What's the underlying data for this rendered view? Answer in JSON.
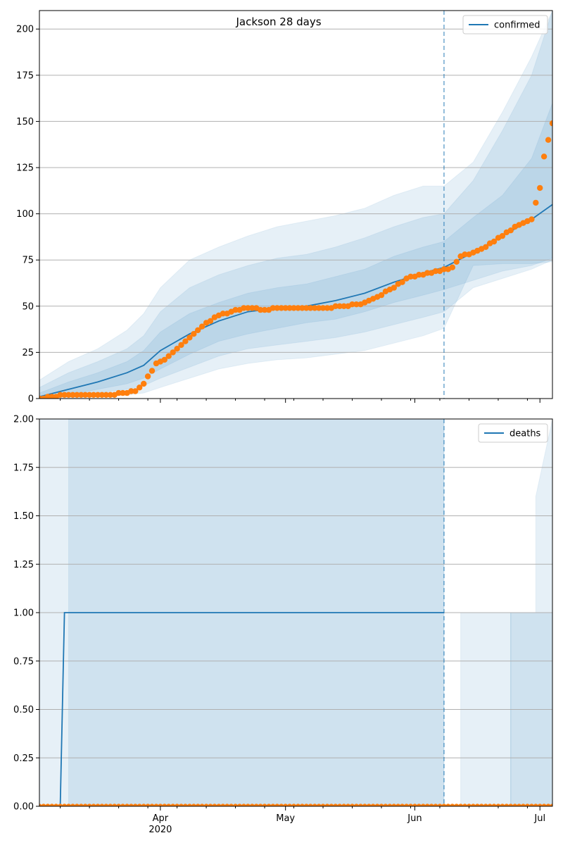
{
  "figure": {
    "title": "Jackson 28 days"
  },
  "colors": {
    "line": "#1f77b4",
    "points": "#ff7f0e",
    "band": "#1f77b4",
    "grid": "#b0b0b0"
  },
  "chart_data": [
    {
      "type": "line",
      "title": "Jackson 28 days",
      "legend": {
        "placement": "top-right",
        "entries": [
          "confirmed"
        ]
      },
      "grid": {
        "y": true,
        "x": false
      },
      "x_axis": {
        "type": "date",
        "range": [
          "2020-03-03",
          "2020-07-04"
        ],
        "ticks": []
      },
      "y_axis": {
        "range": [
          0,
          210
        ],
        "ticks": [
          "0",
          "25",
          "50",
          "75",
          "100",
          "125",
          "150",
          "175",
          "200"
        ]
      },
      "forecast_start": "2020-06-08",
      "x": [
        "2020-03-03",
        "2020-03-10",
        "2020-03-17",
        "2020-03-24",
        "2020-03-28",
        "2020-04-01",
        "2020-04-08",
        "2020-04-15",
        "2020-04-22",
        "2020-04-29",
        "2020-05-06",
        "2020-05-13",
        "2020-05-20",
        "2020-05-27",
        "2020-06-03",
        "2020-06-08",
        "2020-06-15",
        "2020-06-22",
        "2020-06-29",
        "2020-07-04"
      ],
      "series": [
        {
          "name": "confirmed",
          "role": "model",
          "values": [
            1,
            5,
            9,
            14,
            18,
            26,
            35,
            42,
            47,
            49,
            50,
            53,
            57,
            63,
            68,
            71,
            79,
            88,
            97,
            105
          ]
        },
        {
          "role": "band-50",
          "lower": [
            0,
            2,
            5,
            8,
            11,
            16,
            24,
            31,
            35,
            38,
            41,
            43,
            47,
            52,
            56,
            59,
            64,
            69,
            72,
            76
          ],
          "upper": [
            3,
            9,
            14,
            20,
            26,
            36,
            46,
            52,
            57,
            60,
            62,
            66,
            70,
            77,
            82,
            85,
            98,
            110,
            130,
            160
          ]
        },
        {
          "role": "band-80",
          "lower": [
            0,
            1,
            3,
            5,
            7,
            11,
            17,
            23,
            27,
            29,
            31,
            33,
            36,
            40,
            44,
            47,
            60,
            65,
            70,
            75
          ],
          "upper": [
            6,
            14,
            20,
            27,
            34,
            47,
            60,
            67,
            72,
            76,
            78,
            82,
            87,
            93,
            98,
            100,
            118,
            145,
            175,
            210
          ]
        },
        {
          "role": "band-95",
          "lower": [
            0,
            0,
            1,
            2,
            3,
            6,
            11,
            16,
            19,
            21,
            22,
            24,
            26,
            30,
            34,
            38,
            72,
            73,
            73,
            74
          ],
          "upper": [
            10,
            20,
            27,
            37,
            46,
            60,
            75,
            82,
            88,
            93,
            96,
            99,
            103,
            110,
            115,
            115,
            128,
            155,
            185,
            210
          ]
        },
        {
          "role": "observed",
          "x": [
            "2020-03-03",
            "2020-03-06",
            "2020-03-10",
            "2020-03-20",
            "2020-03-23",
            "2020-03-26",
            "2020-03-28",
            "2020-03-31",
            "2020-04-02",
            "2020-04-05",
            "2020-04-08",
            "2020-04-11",
            "2020-04-14",
            "2020-04-18",
            "2020-04-22",
            "2020-04-26",
            "2020-04-30",
            "2020-05-05",
            "2020-05-10",
            "2020-05-15",
            "2020-05-19",
            "2020-05-23",
            "2020-05-27",
            "2020-05-30",
            "2020-06-03",
            "2020-06-07",
            "2020-06-10",
            "2020-06-12",
            "2020-06-14",
            "2020-06-17",
            "2020-06-20",
            "2020-06-23",
            "2020-06-26",
            "2020-06-29",
            "2020-07-01",
            "2020-07-02",
            "2020-07-03",
            "2020-07-04"
          ],
          "values": [
            0,
            1,
            2,
            2,
            3,
            4,
            8,
            19,
            21,
            27,
            33,
            39,
            44,
            47,
            49,
            48,
            49,
            49,
            49,
            50,
            51,
            55,
            60,
            65,
            67,
            69,
            71,
            77,
            78,
            81,
            85,
            90,
            94,
            97,
            114,
            131,
            140,
            149
          ]
        }
      ]
    },
    {
      "type": "line",
      "legend": {
        "placement": "top-right",
        "entries": [
          "deaths"
        ]
      },
      "grid": {
        "y": true,
        "x": false
      },
      "x_axis": {
        "type": "date",
        "range": [
          "2020-03-03",
          "2020-07-04"
        ],
        "ticks": [
          {
            "date": "2020-04-01",
            "label": "Apr",
            "sublabel": "2020"
          },
          {
            "date": "2020-05-01",
            "label": "May"
          },
          {
            "date": "2020-06-01",
            "label": "Jun"
          },
          {
            "date": "2020-07-01",
            "label": "Jul"
          }
        ]
      },
      "y_axis": {
        "range": [
          0,
          2
        ],
        "ticks": [
          "0.00",
          "0.25",
          "0.50",
          "0.75",
          "1.00",
          "1.25",
          "1.50",
          "1.75",
          "2.00"
        ]
      },
      "forecast_start": "2020-06-08",
      "series": [
        {
          "name": "deaths",
          "role": "model",
          "x": [
            "2020-03-03",
            "2020-03-08",
            "2020-03-09",
            "2020-06-08"
          ],
          "values": [
            0,
            0,
            1,
            1
          ]
        },
        {
          "role": "band",
          "x": [
            "2020-03-03",
            "2020-03-10",
            "2020-06-08"
          ],
          "lower": [
            0,
            0,
            0
          ],
          "upper": [
            2,
            2,
            2
          ]
        },
        {
          "role": "band",
          "x": [
            "2020-03-10",
            "2020-06-08"
          ],
          "lower": [
            0,
            0
          ],
          "upper": [
            2,
            2
          ]
        },
        {
          "role": "band",
          "x": [
            "2020-06-12",
            "2020-06-24"
          ],
          "lower": [
            0,
            0
          ],
          "upper": [
            1,
            1
          ]
        },
        {
          "role": "band",
          "x": [
            "2020-06-24",
            "2020-07-04"
          ],
          "lower": [
            0,
            0
          ],
          "upper": [
            1,
            1
          ]
        },
        {
          "role": "band",
          "x": [
            "2020-06-24",
            "2020-07-04"
          ],
          "lower": [
            0,
            0
          ],
          "upper": [
            1,
            1
          ]
        },
        {
          "role": "band",
          "x": [
            "2020-06-30",
            "2020-07-04"
          ],
          "lower": [
            1,
            1
          ],
          "upper": [
            1.6,
            2
          ]
        },
        {
          "role": "observed",
          "x_range": [
            "2020-03-03",
            "2020-07-04"
          ],
          "constant": 0
        }
      ]
    }
  ]
}
